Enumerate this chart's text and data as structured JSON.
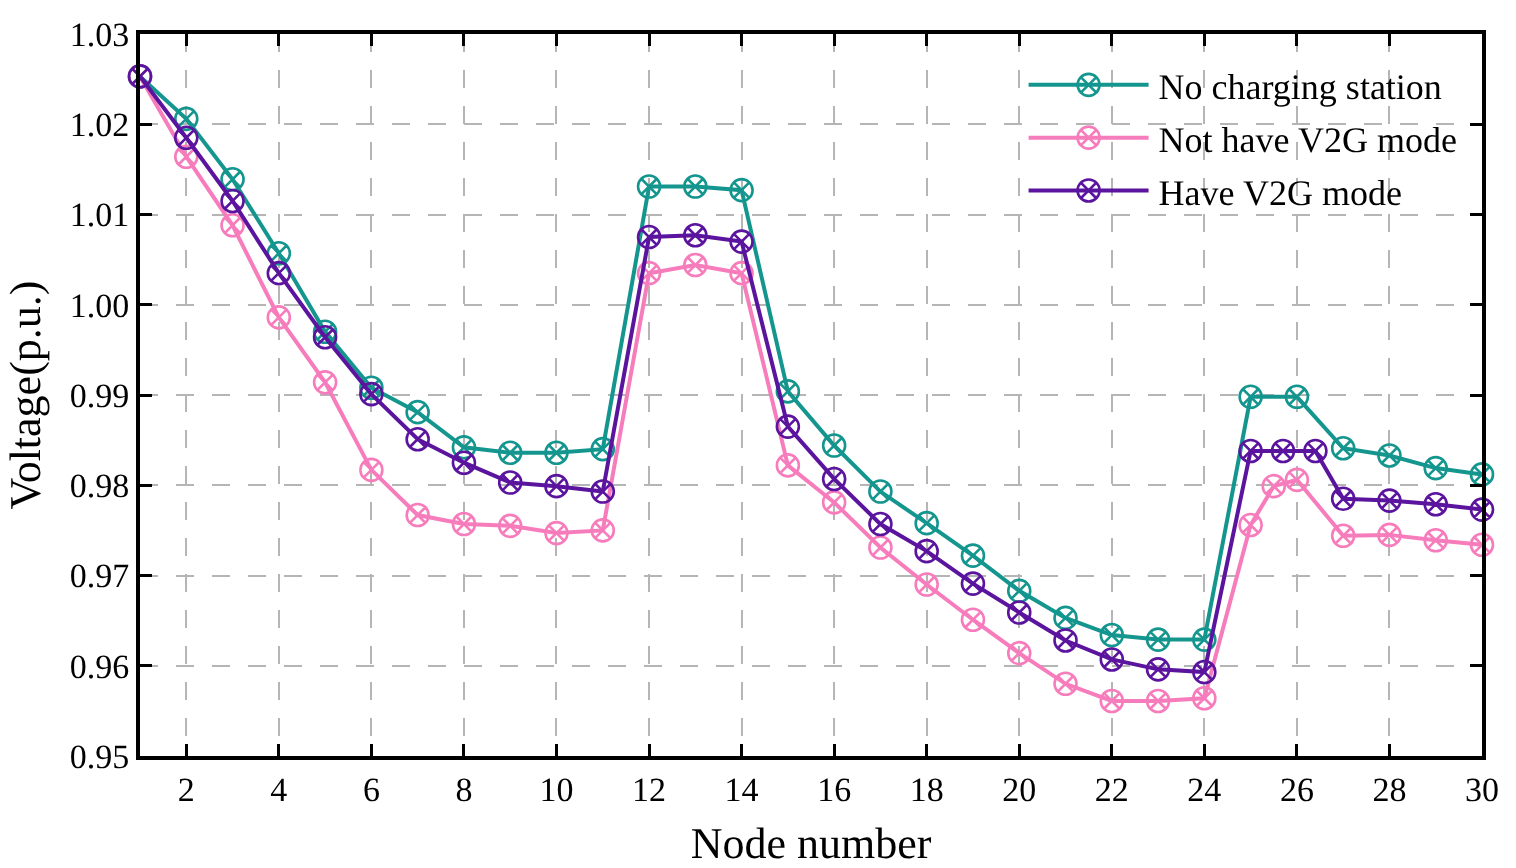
{
  "chart_data": {
    "type": "line",
    "xlabel": "Node number",
    "ylabel": "Voltage(p.u.)",
    "x": [
      1,
      2,
      3,
      4,
      5,
      6,
      7,
      8,
      9,
      10,
      11,
      12,
      13,
      14,
      15,
      16,
      17,
      18,
      19,
      20,
      21,
      22,
      23,
      24,
      25,
      26,
      27,
      28,
      29,
      30
    ],
    "xlim": [
      1,
      30
    ],
    "xticks": [
      2,
      4,
      6,
      8,
      10,
      12,
      14,
      16,
      18,
      20,
      22,
      24,
      26,
      28,
      30
    ],
    "ylim": [
      0.95,
      1.03
    ],
    "yticks": [
      0.95,
      0.96,
      0.97,
      0.98,
      0.99,
      {
        "value": 1,
        "label": "1.00"
      },
      1.01,
      1.02,
      1.03
    ],
    "grid": true,
    "legend": "top right",
    "marker": "cross",
    "line_style": "solid",
    "series": [
      {
        "name": "No charging station",
        "color": "#14968f",
        "values": [
          1.0253,
          1.0206,
          1.0139,
          1.0057,
          0.997,
          0.9908,
          0.9881,
          0.9842,
          0.9836,
          0.9836,
          0.984,
          1.0131,
          1.0131,
          1.0127,
          0.9904,
          0.9844,
          0.9793,
          0.9758,
          0.9722,
          0.9683,
          0.9653,
          0.9634,
          0.9629,
          0.9629,
          0.9898,
          0.9898,
          0.9841,
          0.9833,
          0.9819,
          0.9812
        ]
      },
      {
        "name": "Not have V2G mode",
        "color": "#f77cbc",
        "x": [
          1,
          2,
          3,
          4,
          5,
          6,
          7,
          8,
          9,
          10,
          11,
          12,
          13,
          14,
          15,
          16,
          17,
          18,
          19,
          20,
          21,
          22,
          23,
          24,
          25,
          25.5,
          26,
          27,
          28,
          29,
          30
        ],
        "values": [
          1.0253,
          1.0164,
          1.0088,
          0.9986,
          0.9914,
          0.9817,
          0.9767,
          0.9757,
          0.9755,
          0.9747,
          0.975,
          1.0035,
          1.0044,
          1.0035,
          0.9822,
          0.9781,
          0.9731,
          0.969,
          0.9651,
          0.9614,
          0.958,
          0.9561,
          0.9561,
          0.9564,
          0.9756,
          0.9799,
          0.9806,
          0.9744,
          0.9745,
          0.9739,
          0.9734
        ]
      },
      {
        "name": "Have V2G mode",
        "color": "#5b149e",
        "x": [
          1,
          2,
          3,
          4,
          5,
          6,
          7,
          8,
          9,
          10,
          11,
          12,
          13,
          14,
          15,
          16,
          17,
          18,
          19,
          20,
          21,
          22,
          23,
          24,
          25,
          25.7,
          26.4,
          27,
          28,
          29,
          30
        ],
        "values": [
          1.0253,
          1.0185,
          1.0115,
          1.0035,
          0.9964,
          0.9901,
          0.9851,
          0.9825,
          0.9803,
          0.9799,
          0.9793,
          1.0075,
          1.0077,
          1.007,
          0.9865,
          0.9807,
          0.9757,
          0.9727,
          0.9691,
          0.9659,
          0.9628,
          0.9607,
          0.9596,
          0.9593,
          0.9838,
          0.9838,
          0.9838,
          0.9785,
          0.9783,
          0.9779,
          0.9773
        ]
      }
    ]
  }
}
